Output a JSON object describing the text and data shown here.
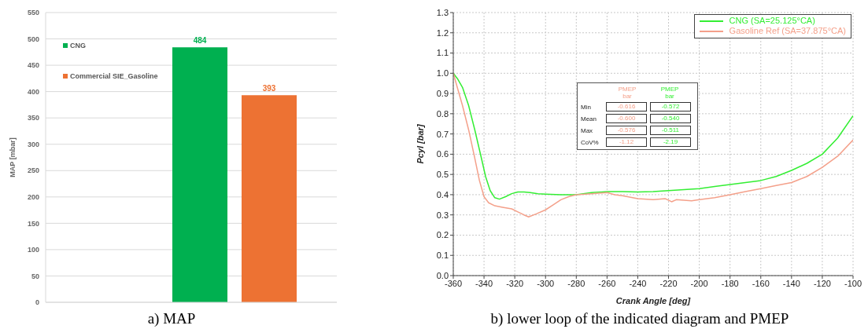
{
  "chart_data": [
    {
      "type": "bar",
      "title": "a) MAP",
      "ylabel": "MAP [mbar]",
      "categories": [
        null
      ],
      "series": [
        {
          "name": "CNG",
          "color": "#00b050",
          "values": [
            484
          ]
        },
        {
          "name": "Commercial SIE_Gasoline",
          "color": "#ed7233",
          "values": [
            393
          ]
        }
      ],
      "ylim": [
        0,
        550
      ],
      "yticks": [
        0,
        50,
        100,
        150,
        200,
        250,
        300,
        350,
        400,
        450,
        500,
        550
      ],
      "grid": "y",
      "legend": "top left",
      "data_labels": true
    },
    {
      "type": "line",
      "title": "b) lower loop of the indicated diagram and PMEP",
      "xlabel": "Crank Angle [deg]",
      "ylabel": "Pcyl [bar]",
      "series": [
        {
          "name": "CNG (SA=25.125°CA)",
          "color": "#33ee33",
          "x": [
            -360,
            -357,
            -354,
            -350,
            -346,
            -342,
            -339,
            -336,
            -333,
            -330,
            -326,
            -322,
            -318,
            -314,
            -310,
            -305,
            -300,
            -290,
            -280,
            -270,
            -260,
            -250,
            -240,
            -230,
            -220,
            -210,
            -200,
            -190,
            -180,
            -170,
            -160,
            -150,
            -140,
            -130,
            -120,
            -110,
            -100
          ],
          "values": [
            1.0,
            0.97,
            0.93,
            0.84,
            0.72,
            0.59,
            0.49,
            0.42,
            0.385,
            0.378,
            0.39,
            0.405,
            0.413,
            0.413,
            0.41,
            0.405,
            0.403,
            0.4,
            0.4,
            0.41,
            0.415,
            0.415,
            0.413,
            0.415,
            0.42,
            0.425,
            0.43,
            0.44,
            0.45,
            0.46,
            0.47,
            0.49,
            0.52,
            0.555,
            0.6,
            0.68,
            0.79
          ]
        },
        {
          "name": "Gasoline Ref (SA=37.875°CA)",
          "color": "#f4a08a",
          "x": [
            -360,
            -357,
            -354,
            -350,
            -346,
            -343,
            -340,
            -337,
            -333,
            -328,
            -322,
            -318,
            -314,
            -311,
            -306,
            -300,
            -295,
            -290,
            -285,
            -280,
            -270,
            -260,
            -255,
            -250,
            -240,
            -230,
            -222,
            -218,
            -215,
            -205,
            -200,
            -190,
            -180,
            -170,
            -160,
            -150,
            -140,
            -130,
            -120,
            -110,
            -100
          ],
          "values": [
            1.0,
            0.92,
            0.84,
            0.72,
            0.58,
            0.47,
            0.39,
            0.36,
            0.345,
            0.338,
            0.33,
            0.315,
            0.3,
            0.29,
            0.305,
            0.325,
            0.35,
            0.375,
            0.39,
            0.4,
            0.405,
            0.41,
            0.4,
            0.395,
            0.38,
            0.375,
            0.38,
            0.365,
            0.375,
            0.37,
            0.375,
            0.385,
            0.4,
            0.415,
            0.43,
            0.445,
            0.46,
            0.49,
            0.535,
            0.59,
            0.67
          ]
        }
      ],
      "xlim": [
        -360,
        -100
      ],
      "xticks": [
        -360,
        -340,
        -320,
        -300,
        -280,
        -260,
        -240,
        -220,
        -200,
        -180,
        -160,
        -140,
        -120,
        -100
      ],
      "ylim": [
        0,
        1.3
      ],
      "yticks": [
        {
          "value": 0,
          "label": "0.0"
        },
        {
          "value": 0.1,
          "label": "0.1"
        },
        {
          "value": 0.2,
          "label": "0.2"
        },
        {
          "value": 0.3,
          "label": "0.3"
        },
        {
          "value": 0.4,
          "label": "0.4"
        },
        {
          "value": 0.5,
          "label": "0.5"
        },
        {
          "value": 0.6,
          "label": "0.6"
        },
        {
          "value": 0.7,
          "label": "0.7"
        },
        {
          "value": 0.8,
          "label": "0.8"
        },
        {
          "value": 0.9,
          "label": "0.9"
        },
        {
          "value": 1.0,
          "label": "1.0"
        },
        {
          "value": 1.1,
          "label": "1.1"
        },
        {
          "value": 1.2,
          "label": "1.2"
        },
        {
          "value": 1.3,
          "label": "1.3"
        }
      ],
      "grid": true,
      "legend": "top right",
      "marker": "none",
      "line_style": "solid",
      "annotations": [
        "PMEP bar",
        "PMEP bar",
        "Min",
        "-0.616",
        "-0.572",
        "Mean",
        "-0.600",
        "-0.540",
        "Max",
        "-0.576",
        "-0.511",
        "CoV%",
        "-1.12",
        "-2.19"
      ]
    }
  ]
}
